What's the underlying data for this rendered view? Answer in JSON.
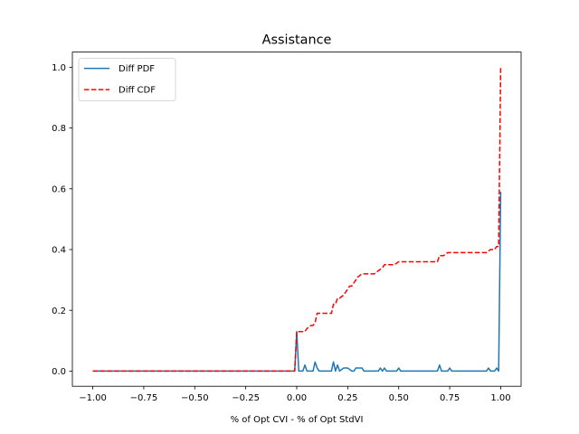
{
  "chart_data": {
    "type": "line",
    "title": "Assistance",
    "xlabel": "% of Opt CVI - % of Opt StdVI",
    "ylabel": "",
    "xlim": [
      -1.1,
      1.1
    ],
    "ylim": [
      -0.05,
      1.05
    ],
    "xticks": [
      -1.0,
      -0.75,
      -0.5,
      -0.25,
      0.0,
      0.25,
      0.5,
      0.75,
      1.0
    ],
    "xtick_labels": [
      "−1.00",
      "−0.75",
      "−0.50",
      "−0.25",
      "0.00",
      "0.25",
      "0.50",
      "0.75",
      "1.00"
    ],
    "yticks": [
      0.0,
      0.2,
      0.4,
      0.6,
      0.8,
      1.0
    ],
    "ytick_labels": [
      "0.0",
      "0.2",
      "0.4",
      "0.6",
      "0.8",
      "1.0"
    ],
    "grid": false,
    "legend_position": "top-left",
    "series": [
      {
        "name": "Diff PDF",
        "color": "#1f77b4",
        "style": "solid",
        "x": [
          -1.0,
          -0.01,
          0.0,
          0.01,
          0.03,
          0.04,
          0.05,
          0.08,
          0.09,
          0.1,
          0.11,
          0.15,
          0.17,
          0.18,
          0.19,
          0.2,
          0.21,
          0.23,
          0.25,
          0.27,
          0.28,
          0.29,
          0.3,
          0.32,
          0.33,
          0.4,
          0.41,
          0.42,
          0.43,
          0.44,
          0.49,
          0.5,
          0.51,
          0.69,
          0.7,
          0.71,
          0.74,
          0.75,
          0.76,
          0.93,
          0.94,
          0.95,
          0.97,
          0.98,
          0.99,
          1.0
        ],
        "y": [
          0.0,
          0.0,
          0.13,
          0.0,
          0.0,
          0.02,
          0.0,
          0.0,
          0.03,
          0.01,
          0.0,
          0.0,
          0.0,
          0.03,
          0.0,
          0.02,
          0.0,
          0.01,
          0.01,
          0.0,
          0.0,
          0.01,
          0.01,
          0.01,
          0.0,
          0.0,
          0.01,
          0.0,
          0.01,
          0.0,
          0.0,
          0.01,
          0.0,
          0.0,
          0.02,
          0.0,
          0.0,
          0.01,
          0.0,
          0.0,
          0.01,
          0.0,
          0.0,
          0.01,
          0.0,
          0.59
        ]
      },
      {
        "name": "Diff CDF",
        "color": "#ff0000",
        "style": "dashed",
        "x": [
          -1.0,
          -0.01,
          0.0,
          0.04,
          0.05,
          0.07,
          0.08,
          0.09,
          0.1,
          0.16,
          0.17,
          0.18,
          0.19,
          0.2,
          0.21,
          0.23,
          0.25,
          0.26,
          0.27,
          0.29,
          0.3,
          0.32,
          0.33,
          0.38,
          0.4,
          0.42,
          0.43,
          0.45,
          0.48,
          0.5,
          0.51,
          0.69,
          0.7,
          0.72,
          0.74,
          0.76,
          0.93,
          0.95,
          0.97,
          0.98,
          0.99,
          1.0
        ],
        "y": [
          0.0,
          0.0,
          0.13,
          0.13,
          0.14,
          0.15,
          0.15,
          0.16,
          0.19,
          0.19,
          0.19,
          0.22,
          0.22,
          0.24,
          0.24,
          0.25,
          0.27,
          0.28,
          0.28,
          0.3,
          0.31,
          0.32,
          0.32,
          0.32,
          0.33,
          0.34,
          0.35,
          0.35,
          0.35,
          0.36,
          0.36,
          0.36,
          0.38,
          0.38,
          0.39,
          0.39,
          0.39,
          0.4,
          0.4,
          0.41,
          0.41,
          1.0
        ]
      }
    ]
  }
}
